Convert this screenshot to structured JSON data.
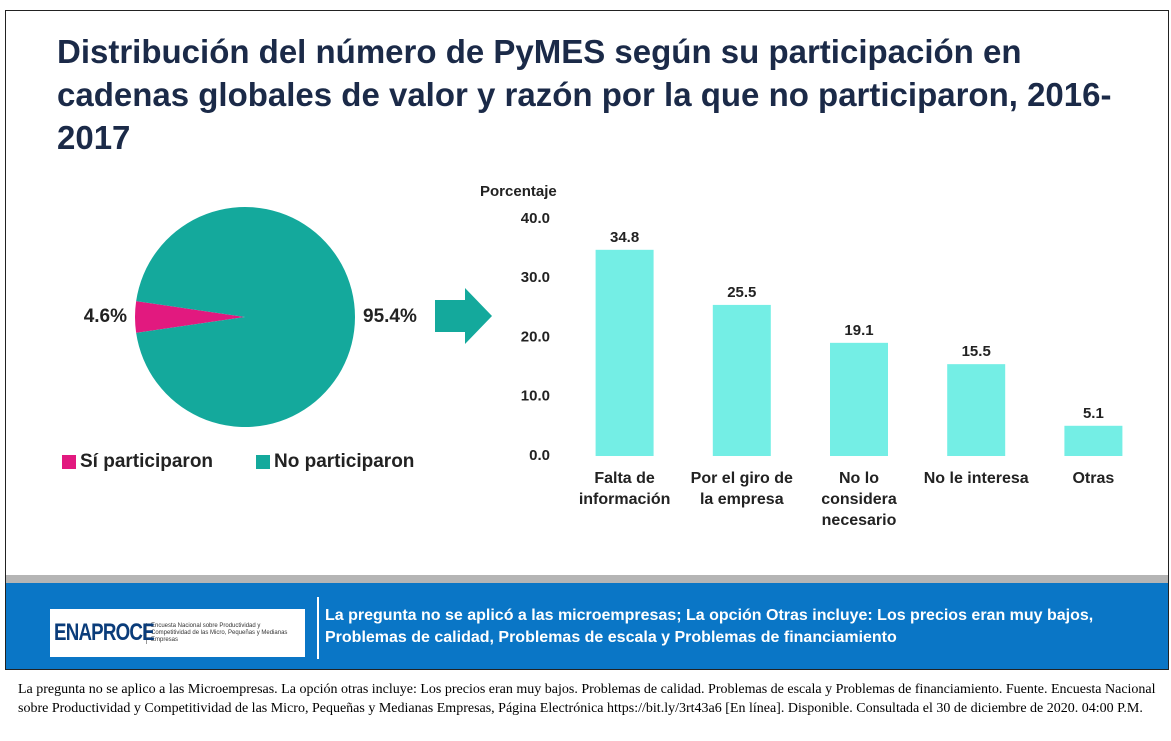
{
  "title": "Distribución del número de PyMES según su participación en cadenas globales de valor y razón por la que no participaron, 2016-2017",
  "chart_data": [
    {
      "type": "pie",
      "categories": [
        "Sí participaron",
        "No participaron"
      ],
      "values": [
        4.6,
        95.4
      ],
      "value_labels": [
        "4.6%",
        "95.4%"
      ],
      "colors": [
        "#e2197f",
        "#14a99c"
      ],
      "legend": "bottom"
    },
    {
      "type": "bar",
      "y_label": "Porcentaje",
      "categories": [
        "Falta de información",
        "Por el giro de la empresa",
        "No lo considera necesario",
        "No le interesa",
        "Otras"
      ],
      "values": [
        34.8,
        25.5,
        19.1,
        15.5,
        5.1
      ],
      "color": "#74eee5",
      "ylim": [
        0,
        40
      ],
      "yticks": [
        {
          "value": 0,
          "label": "0.0"
        },
        {
          "value": 10,
          "label": "10.0"
        },
        {
          "value": 20,
          "label": "20.0"
        },
        {
          "value": 30,
          "label": "30.0"
        },
        {
          "value": 40,
          "label": "40.0"
        }
      ],
      "grid": false
    }
  ],
  "banner": {
    "logo": "ENAPROCE",
    "logo_subtitle": "Encuesta Nacional sobre Productividad y Competitividad de las Micro, Pequeñas y Medianas Empresas",
    "note": "La pregunta no se aplicó a las microempresas; La opción Otras incluye: Los precios eran muy bajos, Problemas de calidad, Problemas de escala y Problemas de financiamiento"
  },
  "footnote": "La pregunta no se aplico a las Microempresas. La opción otras incluye:  Los precios eran muy bajos. Problemas de calidad. Problemas de escala y Problemas de financiamiento.  Fuente. Encuesta Nacional sobre Productividad y Competitividad  de las Micro, Pequeñas y Medianas Empresas, Página Electrónica https://bit.ly/3rt43a6  [En línea]. Disponible.  Consultada el 30 de diciembre de 2020. 04:00 P.M."
}
